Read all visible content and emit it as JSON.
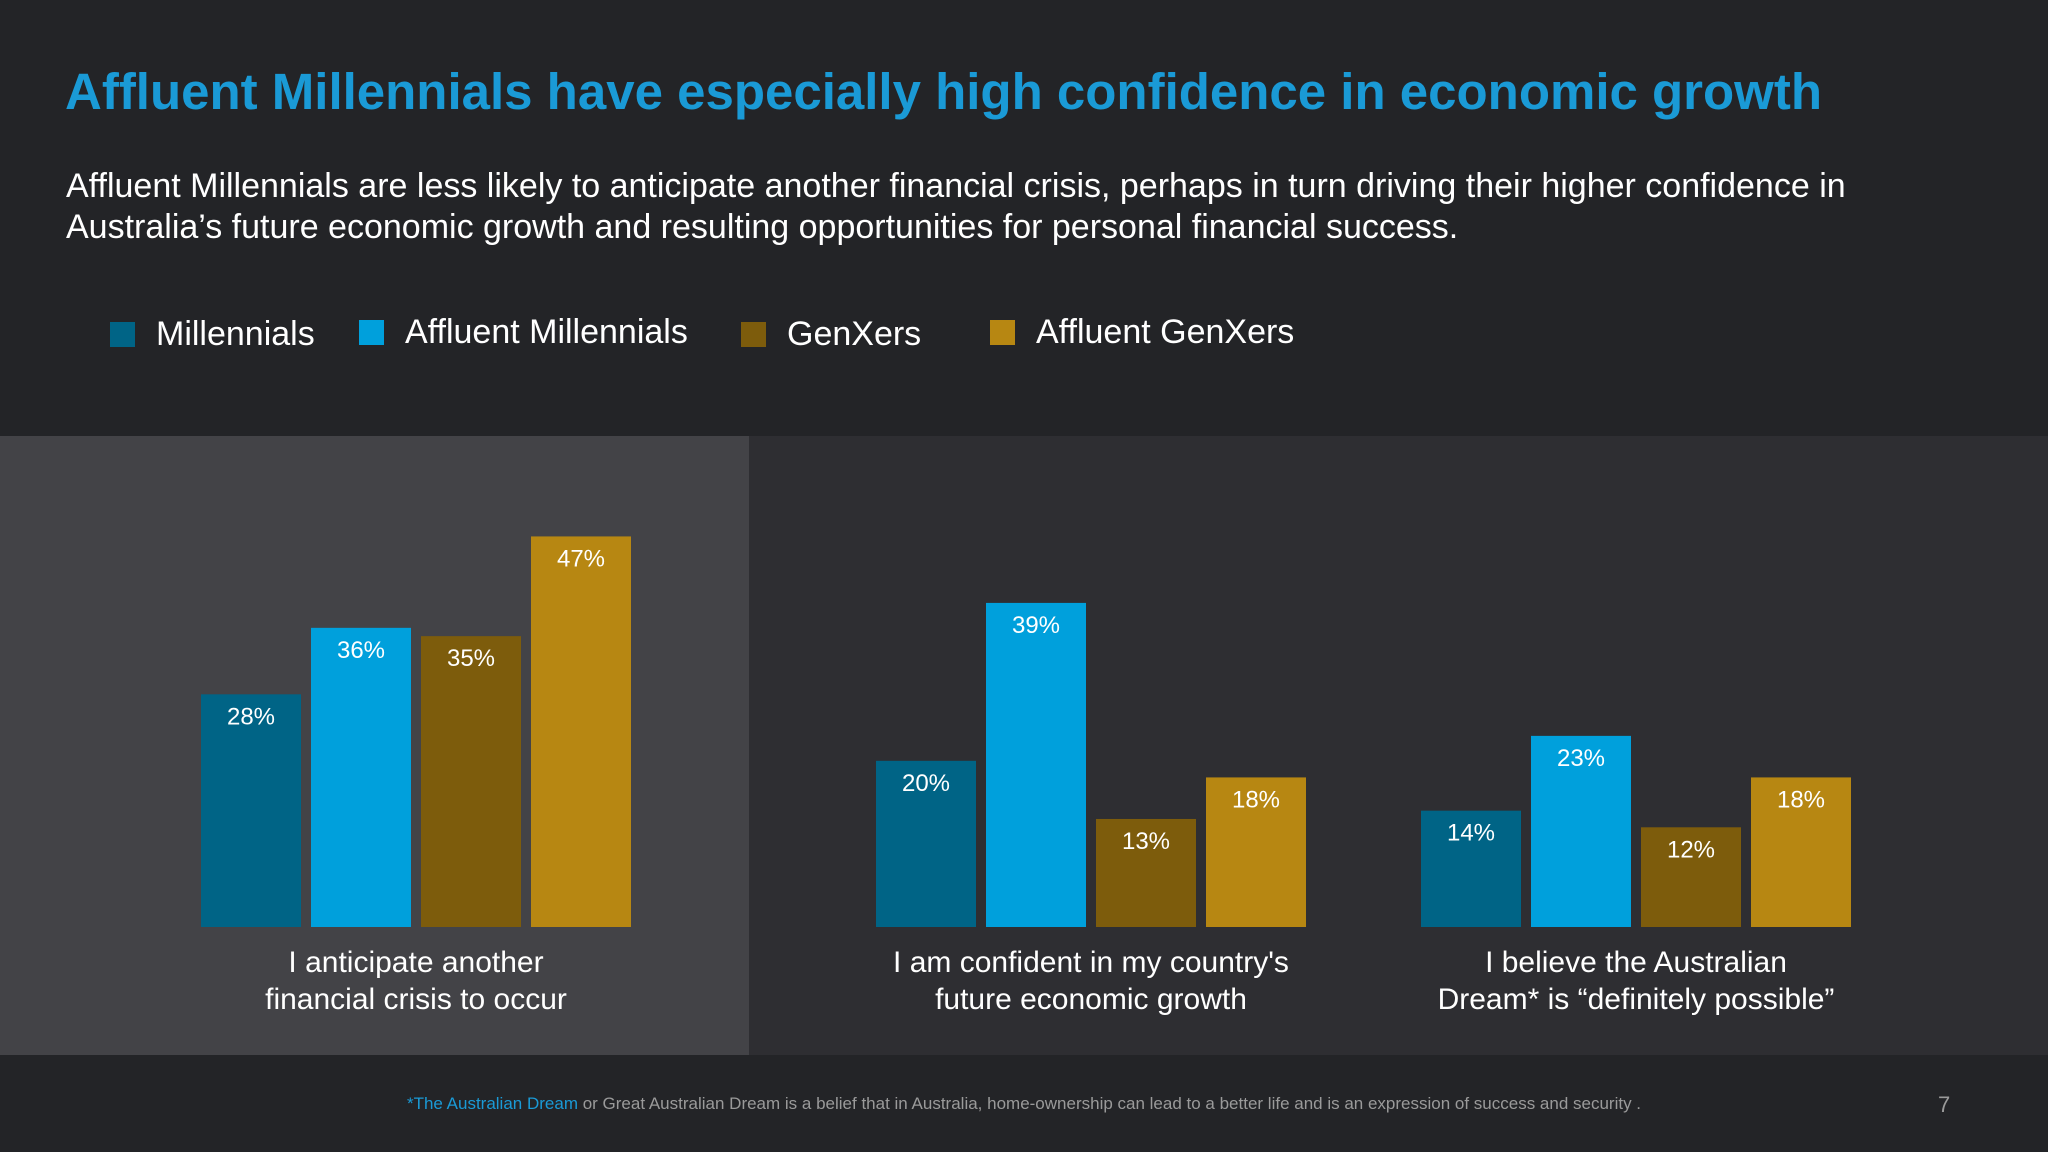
{
  "title": "Affluent Millennials have especially high confidence in economic growth",
  "subtitle": "Affluent Millennials are less likely to anticipate another financial crisis, perhaps in turn driving their higher confidence in Australia’s future economic growth and resulting opportunities for personal financial success.",
  "chart_data": {
    "type": "bar",
    "categories": [
      "I anticipate another financial crisis to occur",
      "I am confident in my country's future economic growth",
      "I believe the Australian Dream* is “definitely possible”"
    ],
    "category_lines": [
      [
        "I anticipate another",
        "financial crisis to occur"
      ],
      [
        "I am confident in my country's",
        "future economic growth"
      ],
      [
        "I believe the Australian",
        "Dream* is “definitely possible”"
      ]
    ],
    "series": [
      {
        "name": "Millennials",
        "color": "#006486",
        "values": [
          28,
          20,
          14
        ]
      },
      {
        "name": "Affluent Millennials",
        "color": "#00a0dc",
        "values": [
          36,
          39,
          23
        ]
      },
      {
        "name": "GenXers",
        "color": "#7d5c0c",
        "values": [
          35,
          13,
          12
        ]
      },
      {
        "name": "Affluent GenXers",
        "color": "#b78712",
        "values": [
          47,
          18,
          18
        ]
      }
    ],
    "value_suffix": "%",
    "legend_position": "top-left",
    "grid": false,
    "ylim": [
      0,
      50
    ]
  },
  "footnote": {
    "highlight": "*The Australian Dream",
    "text": " or Great Australian Dream is a belief that in Australia, home-ownership can lead to a better life and is an expression of success and security ."
  },
  "page_number": "7",
  "colors": {
    "background": "#232427",
    "panel_highlight": "#434347",
    "panel": "#2e2e32",
    "accent": "#1a9ad6"
  }
}
